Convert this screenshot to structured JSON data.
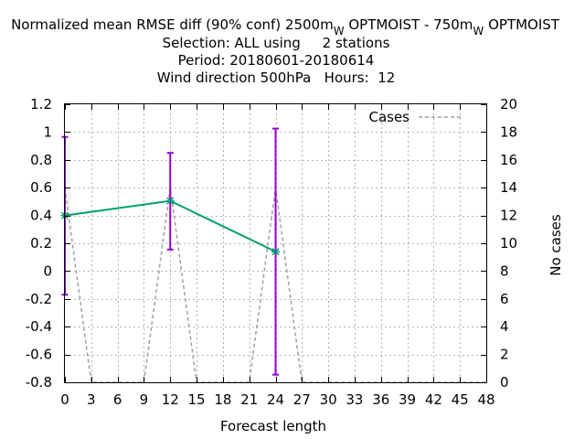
{
  "chart_data": {
    "type": "line",
    "title_lines": [
      "Normalized mean RMSE diff (90% conf) 2500m_W OPTMOIST - 750m_W OPTMOIST",
      "Selection: ALL using     2 stations",
      "Period: 20180601-20180614",
      "Wind direction 500hPa   Hours:  12"
    ],
    "title_parts": {
      "prefix": "Normalized mean RMSE diff (90% conf) 2500m",
      "sub1": "W",
      "middle": " OPTMOIST - 750m",
      "sub2": "W",
      "suffix": " OPTMOIST"
    },
    "xlabel": "Forecast length",
    "ylabel_right": "No cases",
    "xlim": [
      0,
      48
    ],
    "ylim": [
      -0.8,
      1.2
    ],
    "y2lim": [
      0,
      20
    ],
    "x_ticks": [
      0,
      3,
      6,
      9,
      12,
      15,
      18,
      21,
      24,
      27,
      30,
      33,
      36,
      39,
      42,
      45,
      48
    ],
    "y_ticks": [
      "-0.8",
      "-0.6",
      "-0.4",
      "-0.2",
      "0",
      "0.2",
      "0.4",
      "0.6",
      "0.8",
      "1",
      "1.2"
    ],
    "y2_ticks": [
      0,
      2,
      4,
      6,
      8,
      10,
      12,
      14,
      16,
      18,
      20
    ],
    "grid": true,
    "legend": {
      "position": "top-right",
      "label": "Cases"
    },
    "series": [
      {
        "kind": "mean_diff",
        "color": "#009e73",
        "x": [
          0,
          12,
          24
        ],
        "y": [
          0.4,
          0.505,
          0.14
        ]
      },
      {
        "kind": "error_bars",
        "color": "#9400d3",
        "x": [
          0,
          12,
          24
        ],
        "low": [
          -0.17,
          0.155,
          -0.745
        ],
        "high": [
          0.965,
          0.85,
          1.025
        ]
      },
      {
        "name": "Cases",
        "axis": "y2",
        "color": "#a0a0a0",
        "x": [
          0,
          3,
          9,
          12,
          15,
          21,
          24,
          27,
          48
        ],
        "y": [
          14,
          0,
          0,
          14,
          0,
          0,
          14,
          0,
          0
        ]
      }
    ]
  }
}
